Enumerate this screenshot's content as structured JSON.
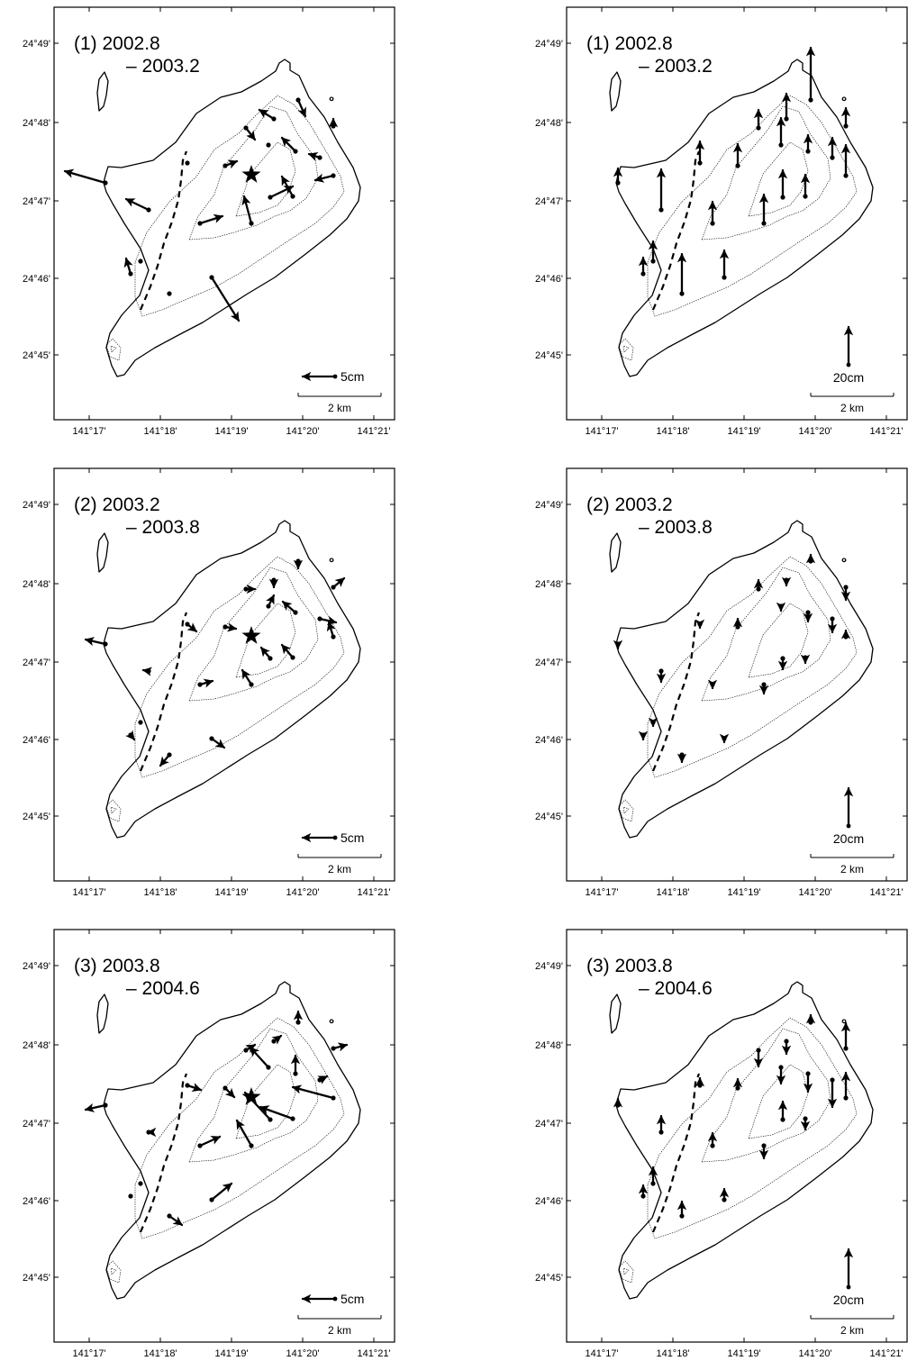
{
  "figure": {
    "panels": [
      {
        "id": "p1h",
        "period_line1": "(1) 2002.8",
        "period_line2": "– 2003.2",
        "component": "horizontal",
        "scale_label": "5cm",
        "scale_cm": 5,
        "star": true
      },
      {
        "id": "p1v",
        "period_line1": "(1) 2002.8",
        "period_line2": "– 2003.2",
        "component": "vertical",
        "scale_label": "20cm",
        "scale_cm": 20,
        "star": false
      },
      {
        "id": "p2h",
        "period_line1": "(2) 2003.2",
        "period_line2": "– 2003.8",
        "component": "horizontal",
        "scale_label": "5cm",
        "scale_cm": 5,
        "star": true
      },
      {
        "id": "p2v",
        "period_line1": "(2) 2003.2",
        "period_line2": "– 2003.8",
        "component": "vertical",
        "scale_label": "20cm",
        "scale_cm": 20,
        "star": false
      },
      {
        "id": "p3h",
        "period_line1": "(3) 2003.8",
        "period_line2": "– 2004.6",
        "component": "horizontal",
        "scale_label": "5cm",
        "scale_cm": 5,
        "star": true
      },
      {
        "id": "p3v",
        "period_line1": "(3) 2003.8",
        "period_line2": "– 2004.6",
        "component": "vertical",
        "scale_label": "20cm",
        "scale_cm": 20,
        "star": false
      }
    ],
    "lat_labels": [
      "24°49'",
      "24°48'",
      "24°47'",
      "24°46'",
      "24°45'"
    ],
    "lon_labels": [
      "141°17'",
      "141°18'",
      "141°19'",
      "141°20'",
      "141°21'"
    ],
    "distance_bar_label": "2 km",
    "legend": {
      "epicenter": "star",
      "fault": "dashed line"
    }
  }
}
